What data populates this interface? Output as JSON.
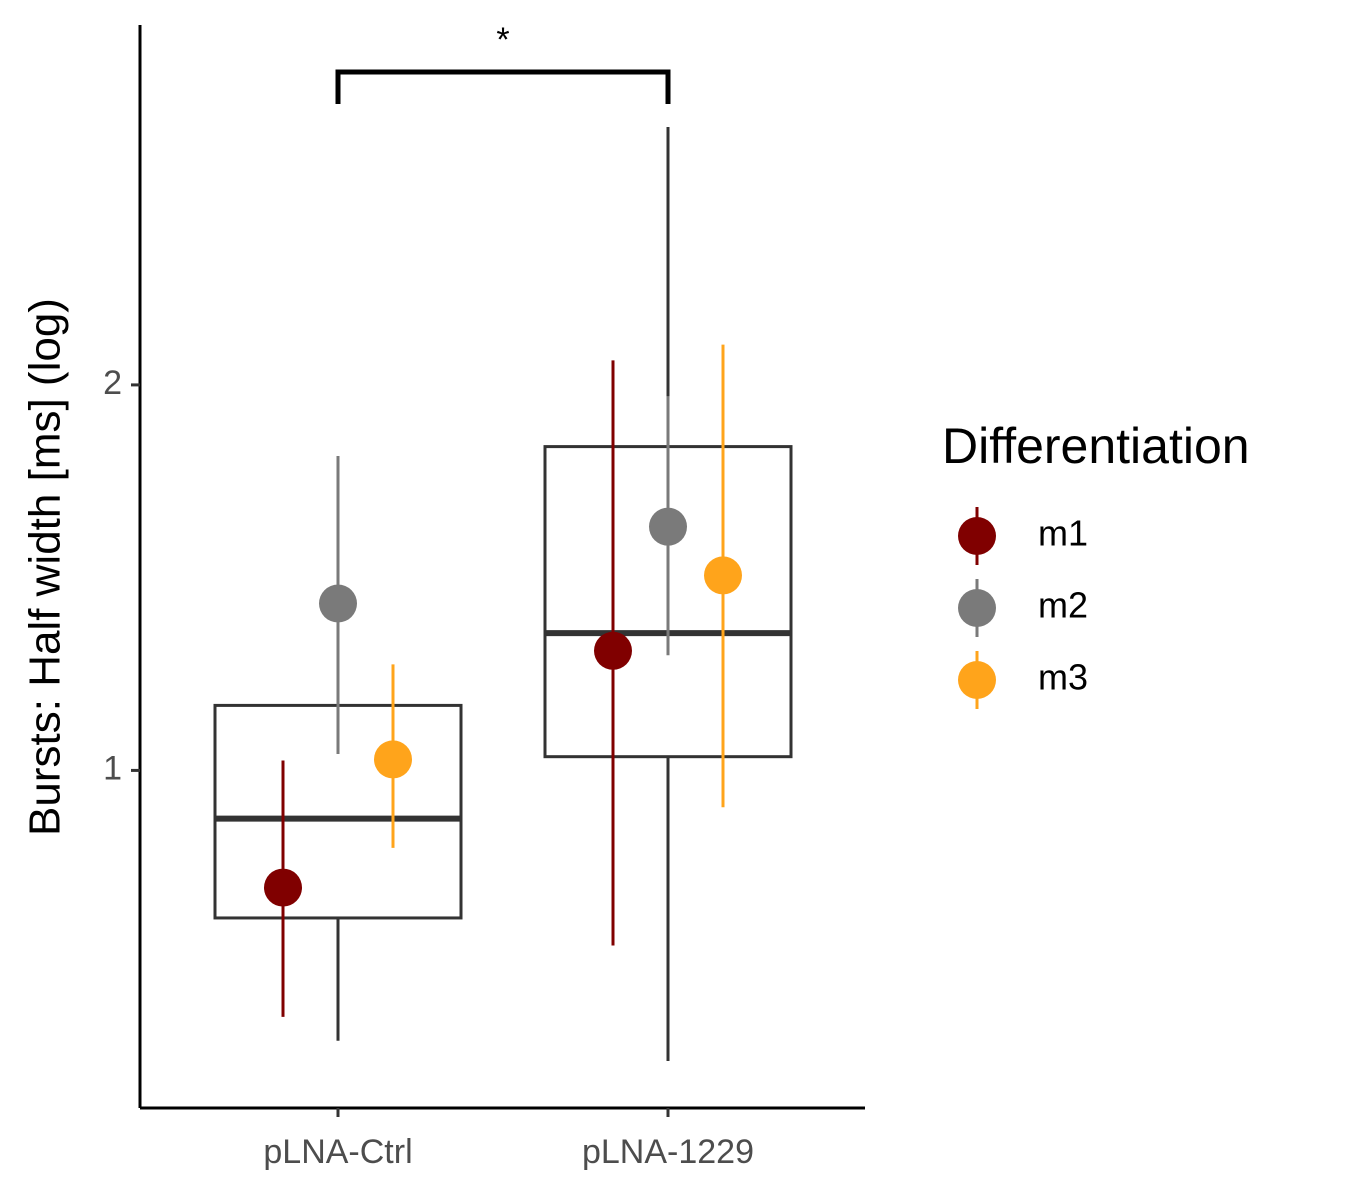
{
  "chart_data": {
    "type": "box",
    "y_label": "Bursts: Half width [ms] (log)",
    "categories": [
      "pLNA-Ctrl",
      "pLNA-1229"
    ],
    "boxes": [
      {
        "min": 0.615,
        "q1": 0.767,
        "median": 0.917,
        "q3": 1.124,
        "max": 1.63
      },
      {
        "min": 0.593,
        "q1": 1.025,
        "median": 1.28,
        "q3": 1.79,
        "max": 3.18
      }
    ],
    "box_color": "#333333",
    "series": [
      {
        "name": "m1",
        "color": "#800000",
        "values": [
          0.81,
          1.24
        ],
        "lower": [
          0.642,
          0.73
        ],
        "upper": [
          1.018,
          2.09
        ]
      },
      {
        "name": "m2",
        "color": "#7a7a7a",
        "values": [
          1.35,
          1.55
        ],
        "lower": [
          1.03,
          1.23
        ],
        "upper": [
          1.76,
          1.96
        ]
      },
      {
        "name": "m3",
        "color": "#ffa41b",
        "values": [
          1.02,
          1.42
        ],
        "lower": [
          0.87,
          0.936
        ],
        "upper": [
          1.21,
          2.15
        ]
      }
    ],
    "legend_title": "Differentiation",
    "legend_position": "right",
    "significance": "*",
    "y_log": true,
    "ylim": [
      0.545,
      3.82
    ],
    "yticks": [
      1,
      2
    ]
  }
}
